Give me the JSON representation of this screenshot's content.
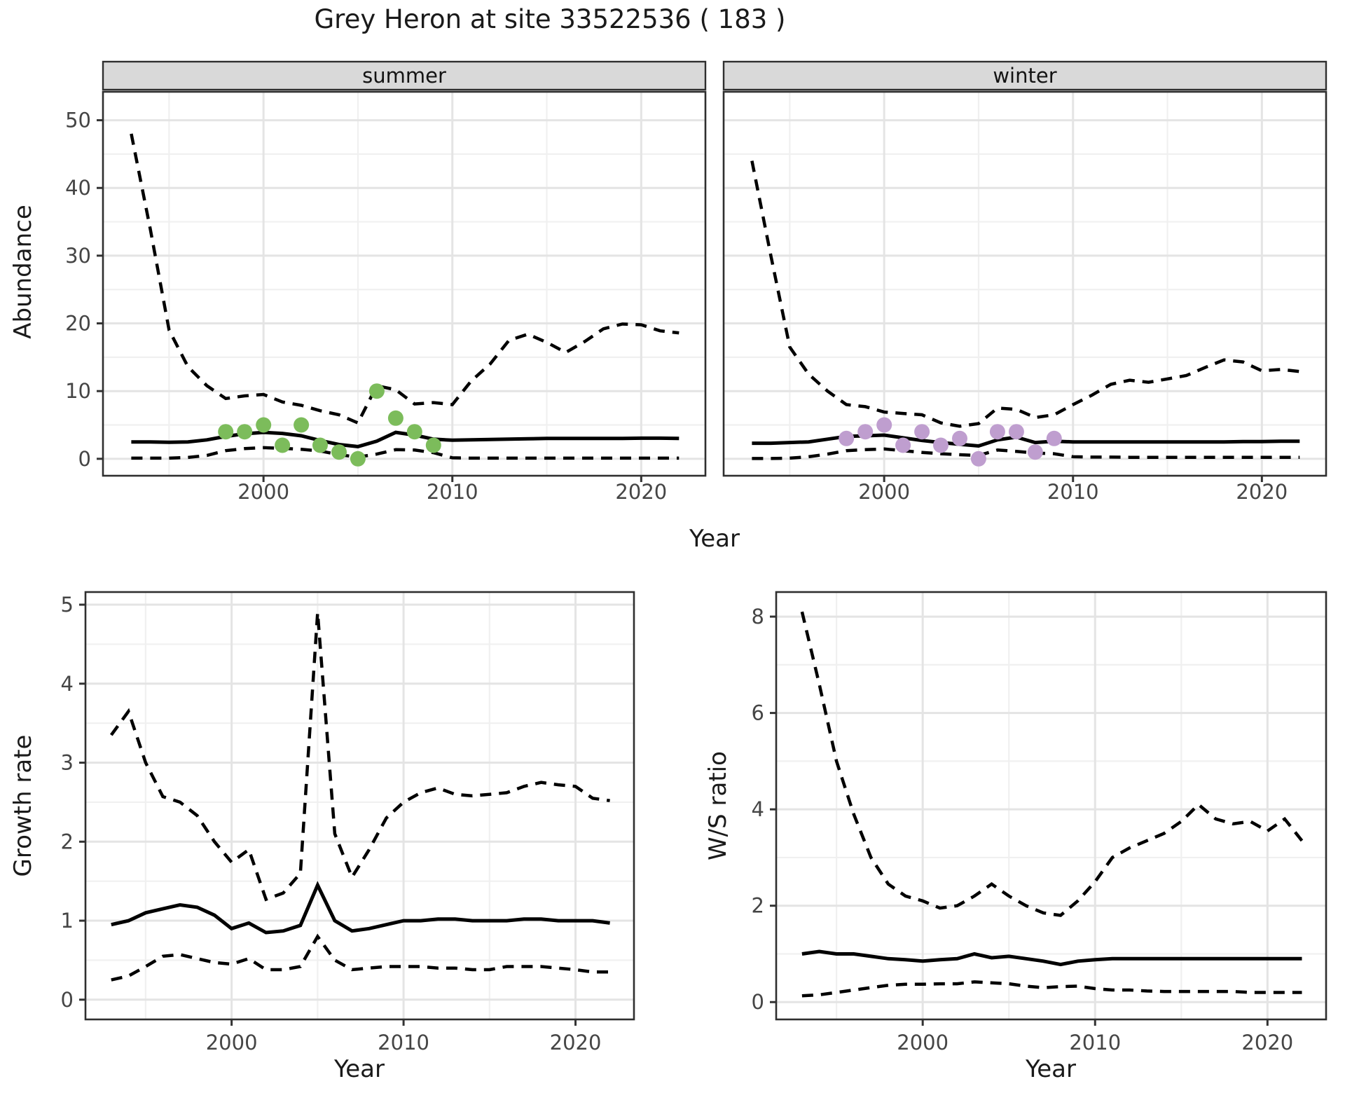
{
  "title": "Grey Heron at site 33522536 ( 183 )",
  "colors": {
    "summer_points": "#7CBC5B",
    "winter_points": "#BF9ECF",
    "line": "#000000",
    "grid_major": "#E4E4E4",
    "grid_minor": "#F0F0F0",
    "strip_bg": "#D9D9D9",
    "panel_border": "#2F2F2F",
    "axis_text": "#454545",
    "text": "#1A1A1A",
    "background": "#FFFFFF"
  },
  "layout_text": {
    "x_axis_title_top": "Year",
    "x_axis_title_bottom_left": "Year",
    "x_axis_title_bottom_right": "Year",
    "abundance_axis_title": "Abundance",
    "growth_axis_title": "Growth rate",
    "ratio_axis_title": "W/S ratio",
    "facet_labels": [
      "summer",
      "winter"
    ]
  },
  "chart_data": [
    {
      "id": "abundance-summer",
      "type": "line",
      "facet": "summer",
      "xlabel": "Year",
      "ylabel": "Abundance",
      "xlim": [
        1991.5,
        2023.4
      ],
      "ylim": [
        -2.5,
        54.2
      ],
      "x_ticks": [
        2000,
        2010,
        2020
      ],
      "x_minor": [
        1995,
        2005,
        2015
      ],
      "y_ticks": [
        0,
        10,
        20,
        30,
        40,
        50
      ],
      "y_minor": [
        5,
        15,
        25,
        35,
        45
      ],
      "years": [
        1993,
        1994,
        1995,
        1996,
        1997,
        1998,
        1999,
        2000,
        2001,
        2002,
        2003,
        2004,
        2005,
        2006,
        2007,
        2008,
        2009,
        2010,
        2011,
        2012,
        2013,
        2014,
        2015,
        2016,
        2017,
        2018,
        2019,
        2020,
        2021,
        2022
      ],
      "series": [
        {
          "name": "median",
          "style": "solid",
          "values": [
            2.5,
            2.5,
            2.45,
            2.5,
            2.8,
            3.3,
            3.7,
            3.9,
            3.75,
            3.4,
            2.7,
            2.1,
            1.8,
            2.6,
            3.9,
            3.5,
            2.9,
            2.75,
            2.8,
            2.85,
            2.9,
            2.95,
            3.0,
            3.0,
            3.0,
            3.0,
            3.0,
            3.05,
            3.05,
            3.0
          ]
        },
        {
          "name": "upper-95ci",
          "style": "dashed",
          "values": [
            48,
            34,
            19,
            13.6,
            10.8,
            8.9,
            9.3,
            9.5,
            8.4,
            7.9,
            7.1,
            6.5,
            5.3,
            10.8,
            10.2,
            8.1,
            8.3,
            8.0,
            11.5,
            14.0,
            17.5,
            18.4,
            17.2,
            15.7,
            17.3,
            19.2,
            19.9,
            19.8,
            18.9,
            18.6
          ]
        },
        {
          "name": "lower-95ci",
          "style": "dashed",
          "values": [
            0.1,
            0.1,
            0.1,
            0.2,
            0.5,
            1.2,
            1.5,
            1.65,
            1.55,
            1.4,
            1.15,
            0.6,
            0.25,
            0.7,
            1.35,
            1.3,
            0.9,
            0.15,
            0.1,
            0.1,
            0.1,
            0.1,
            0.1,
            0.1,
            0.1,
            0.1,
            0.1,
            0.1,
            0.1,
            0.1
          ]
        }
      ],
      "points": {
        "name": "observed-counts-summer",
        "color_key": "summer_points",
        "years": [
          1998,
          1999,
          2000,
          2001,
          2002,
          2003,
          2004,
          2005,
          2006,
          2007,
          2008,
          2009
        ],
        "values": [
          4,
          4,
          5,
          2,
          5,
          2,
          1,
          0,
          10,
          6,
          4,
          2
        ]
      }
    },
    {
      "id": "abundance-winter",
      "type": "line",
      "facet": "winter",
      "xlabel": "Year",
      "ylabel": "Abundance",
      "xlim": [
        1991.5,
        2023.4
      ],
      "ylim": [
        -2.5,
        54.2
      ],
      "x_ticks": [
        2000,
        2010,
        2020
      ],
      "x_minor": [
        1995,
        2005,
        2015
      ],
      "y_ticks": [
        0,
        10,
        20,
        30,
        40,
        50
      ],
      "y_minor": [
        5,
        15,
        25,
        35,
        45
      ],
      "years": [
        1993,
        1994,
        1995,
        1996,
        1997,
        1998,
        1999,
        2000,
        2001,
        2002,
        2003,
        2004,
        2005,
        2006,
        2007,
        2008,
        2009,
        2010,
        2011,
        2012,
        2013,
        2014,
        2015,
        2016,
        2017,
        2018,
        2019,
        2020,
        2021,
        2022
      ],
      "series": [
        {
          "name": "median",
          "style": "solid",
          "values": [
            2.3,
            2.3,
            2.4,
            2.5,
            2.9,
            3.3,
            3.4,
            3.5,
            3.1,
            2.7,
            2.4,
            2.15,
            1.9,
            2.8,
            3.2,
            2.4,
            2.6,
            2.5,
            2.5,
            2.5,
            2.5,
            2.5,
            2.5,
            2.5,
            2.5,
            2.5,
            2.55,
            2.55,
            2.6,
            2.6
          ]
        },
        {
          "name": "upper-95ci",
          "style": "dashed",
          "values": [
            44,
            30,
            16.5,
            12.5,
            10.0,
            8.0,
            7.7,
            6.9,
            6.7,
            6.5,
            5.3,
            4.8,
            5.2,
            7.5,
            7.3,
            6.1,
            6.5,
            8.0,
            9.4,
            11.0,
            11.6,
            11.3,
            11.8,
            12.3,
            13.5,
            14.6,
            14.3,
            13.0,
            13.2,
            12.9
          ]
        },
        {
          "name": "lower-95ci",
          "style": "dashed",
          "values": [
            0.05,
            0.05,
            0.1,
            0.3,
            0.7,
            1.2,
            1.35,
            1.45,
            1.2,
            0.95,
            0.75,
            0.6,
            0.5,
            1.3,
            1.1,
            0.85,
            0.75,
            0.3,
            0.25,
            0.25,
            0.22,
            0.22,
            0.22,
            0.22,
            0.22,
            0.22,
            0.22,
            0.22,
            0.22,
            0.22
          ]
        }
      ],
      "points": {
        "name": "observed-counts-winter",
        "color_key": "winter_points",
        "years": [
          1998,
          1999,
          2000,
          2001,
          2002,
          2003,
          2004,
          2005,
          2006,
          2007,
          2008,
          2009
        ],
        "values": [
          3,
          4,
          5,
          2,
          4,
          2,
          3,
          0,
          4,
          4,
          1,
          3
        ]
      }
    },
    {
      "id": "growth-rate",
      "type": "line",
      "facet": null,
      "xlabel": "Year",
      "ylabel": "Growth rate",
      "xlim": [
        1991.5,
        2023.4
      ],
      "ylim": [
        -0.25,
        5.16
      ],
      "x_ticks": [
        2000,
        2010,
        2020
      ],
      "x_minor": [
        1995,
        2005,
        2015
      ],
      "y_ticks": [
        0,
        1,
        2,
        3,
        4,
        5
      ],
      "y_minor": [
        0.5,
        1.5,
        2.5,
        3.5,
        4.5
      ],
      "years": [
        1993,
        1994,
        1995,
        1996,
        1997,
        1998,
        1999,
        2000,
        2001,
        2002,
        2003,
        2004,
        2005,
        2006,
        2007,
        2008,
        2009,
        2010,
        2011,
        2012,
        2013,
        2014,
        2015,
        2016,
        2017,
        2018,
        2019,
        2020,
        2021,
        2022
      ],
      "series": [
        {
          "name": "median",
          "style": "solid",
          "values": [
            0.95,
            1.0,
            1.1,
            1.15,
            1.2,
            1.17,
            1.07,
            0.9,
            0.97,
            0.85,
            0.87,
            0.94,
            1.45,
            1.0,
            0.87,
            0.9,
            0.95,
            1.0,
            1.0,
            1.02,
            1.02,
            1.0,
            1.0,
            1.0,
            1.02,
            1.02,
            1.0,
            1.0,
            1.0,
            0.97
          ]
        },
        {
          "name": "upper-95ci",
          "style": "dashed",
          "values": [
            3.35,
            3.65,
            3.0,
            2.57,
            2.5,
            2.33,
            2.0,
            1.74,
            1.9,
            1.27,
            1.35,
            1.6,
            4.9,
            2.1,
            1.55,
            1.9,
            2.3,
            2.5,
            2.62,
            2.68,
            2.6,
            2.58,
            2.6,
            2.62,
            2.7,
            2.75,
            2.72,
            2.7,
            2.55,
            2.52
          ]
        },
        {
          "name": "lower-95ci",
          "style": "dashed",
          "values": [
            0.25,
            0.3,
            0.42,
            0.55,
            0.57,
            0.52,
            0.47,
            0.45,
            0.52,
            0.38,
            0.38,
            0.42,
            0.8,
            0.5,
            0.38,
            0.4,
            0.42,
            0.42,
            0.42,
            0.4,
            0.4,
            0.38,
            0.38,
            0.42,
            0.42,
            0.42,
            0.4,
            0.38,
            0.35,
            0.35
          ]
        }
      ],
      "points": null
    },
    {
      "id": "ws-ratio",
      "type": "line",
      "facet": null,
      "xlabel": "Year",
      "ylabel": "W/S ratio",
      "xlim": [
        1991.5,
        2023.4
      ],
      "ylim": [
        -0.36,
        8.51
      ],
      "x_ticks": [
        2000,
        2010,
        2020
      ],
      "x_minor": [
        1995,
        2005,
        2015
      ],
      "y_ticks": [
        0,
        2,
        4,
        6,
        8
      ],
      "y_minor": [
        1,
        3,
        5,
        7
      ],
      "years": [
        1993,
        1994,
        1995,
        1996,
        1997,
        1998,
        1999,
        2000,
        2001,
        2002,
        2003,
        2004,
        2005,
        2006,
        2007,
        2008,
        2009,
        2010,
        2011,
        2012,
        2013,
        2014,
        2015,
        2016,
        2017,
        2018,
        2019,
        2020,
        2021,
        2022
      ],
      "series": [
        {
          "name": "median",
          "style": "solid",
          "values": [
            1.0,
            1.05,
            1.0,
            1.0,
            0.95,
            0.9,
            0.88,
            0.85,
            0.88,
            0.9,
            1.0,
            0.92,
            0.95,
            0.9,
            0.85,
            0.78,
            0.85,
            0.88,
            0.9,
            0.9,
            0.9,
            0.9,
            0.9,
            0.9,
            0.9,
            0.9,
            0.9,
            0.9,
            0.9,
            0.9
          ]
        },
        {
          "name": "upper-95ci",
          "style": "dashed",
          "values": [
            8.1,
            6.6,
            5.0,
            3.9,
            3.0,
            2.45,
            2.2,
            2.1,
            1.95,
            2.0,
            2.2,
            2.45,
            2.2,
            2.0,
            1.85,
            1.8,
            2.1,
            2.5,
            3.0,
            3.2,
            3.35,
            3.5,
            3.75,
            4.1,
            3.8,
            3.7,
            3.75,
            3.55,
            3.8,
            3.35
          ]
        },
        {
          "name": "lower-95ci",
          "style": "dashed",
          "values": [
            0.13,
            0.15,
            0.2,
            0.25,
            0.3,
            0.35,
            0.37,
            0.37,
            0.38,
            0.38,
            0.42,
            0.4,
            0.38,
            0.33,
            0.3,
            0.32,
            0.33,
            0.28,
            0.25,
            0.25,
            0.23,
            0.22,
            0.22,
            0.22,
            0.22,
            0.22,
            0.2,
            0.2,
            0.2,
            0.2
          ]
        }
      ],
      "points": null
    }
  ]
}
